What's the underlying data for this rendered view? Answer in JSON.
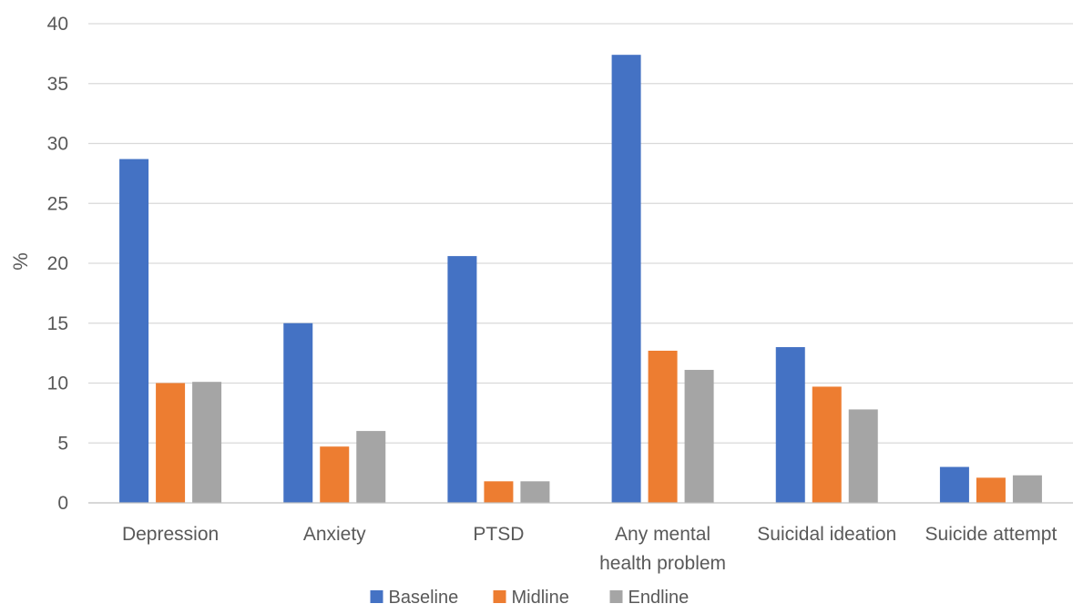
{
  "chart_data": {
    "type": "bar",
    "categories": [
      [
        "Depression"
      ],
      [
        "Anxiety"
      ],
      [
        "PTSD"
      ],
      [
        "Any mental",
        "health problem"
      ],
      [
        "Suicidal ideation"
      ],
      [
        "Suicide attempt"
      ]
    ],
    "series": [
      {
        "name": "Baseline",
        "color": "#4472c4",
        "values": [
          28.7,
          15.0,
          20.6,
          37.4,
          13.0,
          3.0
        ]
      },
      {
        "name": "Midline",
        "color": "#ed7d31",
        "values": [
          10.0,
          4.7,
          1.8,
          12.7,
          9.7,
          2.1
        ]
      },
      {
        "name": "Endline",
        "color": "#a5a5a5",
        "values": [
          10.1,
          6.0,
          1.8,
          11.1,
          7.8,
          2.3
        ]
      }
    ],
    "ylabel": "%",
    "ylim": [
      0,
      40
    ],
    "yticks": [
      0,
      5,
      10,
      15,
      20,
      25,
      30,
      35,
      40
    ],
    "grid": true,
    "legend_position": "bottom"
  }
}
